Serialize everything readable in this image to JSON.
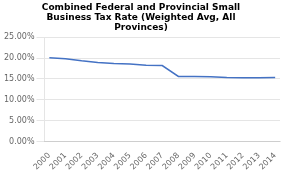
{
  "chart_data": {
    "type": "line",
    "title": "Combined Federal and Provincial Small\nBusiness Tax Rate (Weighted Avg, All\nProvinces)",
    "x": [
      2000,
      2001,
      2002,
      2003,
      2004,
      2005,
      2006,
      2007,
      2008,
      2009,
      2010,
      2011,
      2012,
      2013,
      2014
    ],
    "values": [
      0.2005,
      0.1985,
      0.1935,
      0.1895,
      0.187,
      0.1855,
      0.183,
      0.182,
      0.156,
      0.156,
      0.1555,
      0.1535,
      0.153,
      0.153,
      0.1535
    ],
    "color": "#4472C4",
    "xlim": [
      1999.7,
      2014.3
    ],
    "xticks": [
      2000,
      2001,
      2002,
      2003,
      2004,
      2005,
      2006,
      2007,
      2008,
      2009,
      2010,
      2011,
      2012,
      2013,
      2014
    ],
    "ylim": [
      0.0,
      0.25
    ],
    "yticks": [
      {
        "value": 0.0,
        "label": "0.00%"
      },
      {
        "value": 0.05,
        "label": "5.00%"
      },
      {
        "value": 0.1,
        "label": "10.00%"
      },
      {
        "value": 0.15,
        "label": "15.00%"
      },
      {
        "value": 0.2,
        "label": "20.00%"
      },
      {
        "value": 0.25,
        "label": "25.00%"
      }
    ],
    "grid": "y"
  }
}
